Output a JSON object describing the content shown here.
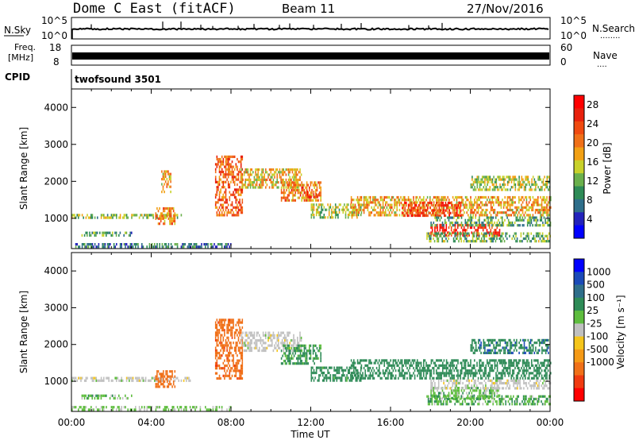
{
  "header": {
    "station": "Dome C East (fitACF)",
    "beam": "Beam 11",
    "date": "27/Nov/2016"
  },
  "noise_panel": {
    "left_label": "N.Sky",
    "right_label": "N.Search",
    "right_dots": "........",
    "tick_top_left": "10^5",
    "tick_bot_left": "10^0",
    "tick_top_right": "10^5",
    "tick_bot_right": "10^0"
  },
  "freq_panel": {
    "left_label_1": "Freq.",
    "left_label_2": "[MHz]",
    "right_label": "Nave",
    "right_dots": "....",
    "left_tick_top": "18",
    "left_tick_bot": "8",
    "right_tick_top": "60",
    "right_tick_bot": "0"
  },
  "cpid": {
    "label": "CPID",
    "program": "twofsound 3501"
  },
  "colors": {
    "power": [
      "#0000ff",
      "#2222bb",
      "#2e6e8a",
      "#2e8b57",
      "#6ab04c",
      "#c8d12a",
      "#f2a014",
      "#f07018",
      "#f04a10",
      "#e8200c",
      "#ff0000"
    ],
    "velocity": [
      "#0000ff",
      "#1a4ab8",
      "#2e6e8a",
      "#2e8b57",
      "#5ebd3e",
      "#c0c0c0",
      "#f5c51b",
      "#f59a16",
      "#f07018",
      "#f03a10",
      "#ff0000"
    ]
  },
  "chart_data": [
    {
      "type": "heatmap",
      "name": "power",
      "ylabel": "Slant Range [km]",
      "xlabel": "Time UT",
      "xlim": [
        0,
        24
      ],
      "ylim": [
        180,
        4500
      ],
      "x_ticks": [
        "00:00",
        "04:00",
        "08:00",
        "12:00",
        "16:00",
        "20:00",
        "00:00"
      ],
      "y_ticks": [
        "1000",
        "2000",
        "3000",
        "4000"
      ],
      "colorbar": {
        "label": "Power [dB]",
        "ticks": [
          "4",
          "8",
          "12",
          "16",
          "20",
          "24",
          "28"
        ],
        "range": [
          0,
          30
        ]
      },
      "regions": [
        {
          "t": [
            0.0,
            5.5
          ],
          "r": [
            1020,
            1120
          ],
          "v": 13
        },
        {
          "t": [
            0.5,
            3.0
          ],
          "r": [
            550,
            640
          ],
          "v": 10
        },
        {
          "t": [
            0.0,
            8.0
          ],
          "r": [
            200,
            330
          ],
          "v": 8
        },
        {
          "t": [
            4.2,
            5.2
          ],
          "r": [
            850,
            1300
          ],
          "v": 20
        },
        {
          "t": [
            4.5,
            5.0
          ],
          "r": [
            1700,
            2300
          ],
          "v": 18
        },
        {
          "t": [
            7.2,
            8.6
          ],
          "r": [
            1100,
            2700
          ],
          "v": 22
        },
        {
          "t": [
            8.5,
            11.5
          ],
          "r": [
            1800,
            2350
          ],
          "v": 17
        },
        {
          "t": [
            10.5,
            12.5
          ],
          "r": [
            1500,
            2000
          ],
          "v": 20
        },
        {
          "t": [
            11.8,
            12.4
          ],
          "r": [
            1550,
            1750
          ],
          "v": 26
        },
        {
          "t": [
            12.0,
            14.5
          ],
          "r": [
            1000,
            1400
          ],
          "v": 14
        },
        {
          "t": [
            14.0,
            24.0
          ],
          "r": [
            1100,
            1600
          ],
          "v": 18
        },
        {
          "t": [
            16.5,
            19.5
          ],
          "r": [
            1100,
            1450
          ],
          "v": 25
        },
        {
          "t": [
            18.0,
            21.5
          ],
          "r": [
            550,
            850
          ],
          "v": 26
        },
        {
          "t": [
            17.8,
            24.0
          ],
          "r": [
            400,
            620
          ],
          "v": 12
        },
        {
          "t": [
            18.0,
            24.0
          ],
          "r": [
            800,
            1050
          ],
          "v": 11
        },
        {
          "t": [
            20.0,
            24.0
          ],
          "r": [
            1750,
            2150
          ],
          "v": 14
        }
      ]
    },
    {
      "type": "heatmap",
      "name": "velocity",
      "ylabel": "Slant Range [km]",
      "xlabel": "Time UT",
      "xlim": [
        0,
        24
      ],
      "ylim": [
        180,
        4500
      ],
      "x_ticks": [
        "00:00",
        "04:00",
        "08:00",
        "12:00",
        "16:00",
        "20:00",
        "00:00"
      ],
      "y_ticks": [
        "1000",
        "2000",
        "3000",
        "4000"
      ],
      "colorbar": {
        "label": "Velocity [m s⁻¹]",
        "ticks": [
          "1000",
          "500",
          "100",
          "25",
          "-25",
          "-100",
          "-500",
          "-1000"
        ]
      },
      "regions": [
        {
          "t": [
            0.0,
            6.0
          ],
          "r": [
            1020,
            1120
          ],
          "v": 0
        },
        {
          "t": [
            0.5,
            3.0
          ],
          "r": [
            550,
            640
          ],
          "v": 60
        },
        {
          "t": [
            0.0,
            8.0
          ],
          "r": [
            200,
            330
          ],
          "v": 40
        },
        {
          "t": [
            4.2,
            5.2
          ],
          "r": [
            850,
            1300
          ],
          "v": -300
        },
        {
          "t": [
            7.2,
            8.6
          ],
          "r": [
            1100,
            2700
          ],
          "v": -350
        },
        {
          "t": [
            8.5,
            11.5
          ],
          "r": [
            1800,
            2350
          ],
          "v": 0
        },
        {
          "t": [
            10.5,
            12.5
          ],
          "r": [
            1500,
            2000
          ],
          "v": 150
        },
        {
          "t": [
            12.0,
            14.5
          ],
          "r": [
            1000,
            1400
          ],
          "v": 200
        },
        {
          "t": [
            14.0,
            24.0
          ],
          "r": [
            1100,
            1600
          ],
          "v": 300
        },
        {
          "t": [
            18.0,
            21.5
          ],
          "r": [
            550,
            850
          ],
          "v": 60
        },
        {
          "t": [
            17.8,
            24.0
          ],
          "r": [
            400,
            620
          ],
          "v": 80
        },
        {
          "t": [
            18.0,
            24.0
          ],
          "r": [
            800,
            1050
          ],
          "v": 0
        },
        {
          "t": [
            20.0,
            24.0
          ],
          "r": [
            1750,
            2150
          ],
          "v": 400
        }
      ]
    }
  ]
}
